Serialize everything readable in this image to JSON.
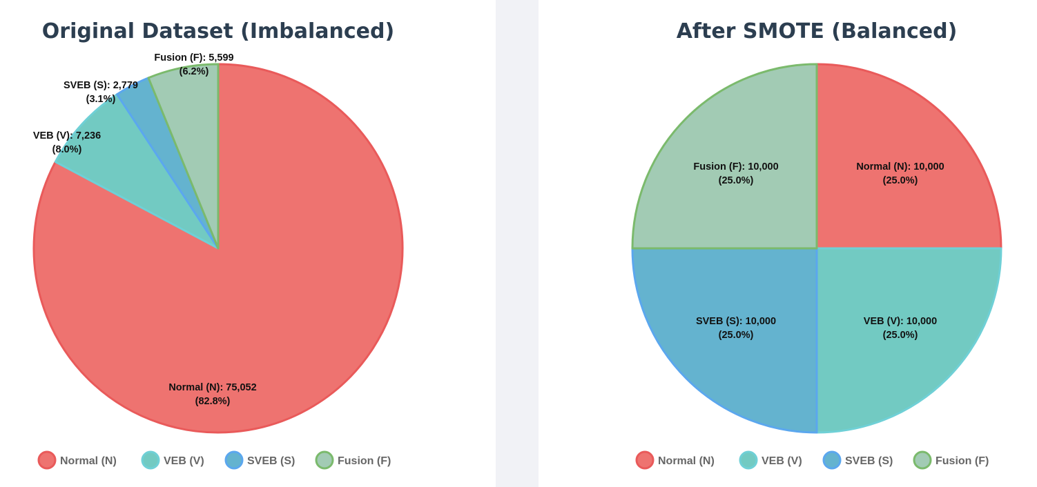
{
  "chart_data": [
    {
      "type": "pie",
      "title": "Original Dataset (Imbalanced)",
      "categories": [
        "Normal (N)",
        "VEB (V)",
        "SVEB (S)",
        "Fusion (F)"
      ],
      "values": [
        75052,
        7236,
        2779,
        5599
      ],
      "value_labels": [
        "Normal (N): 75,052",
        "VEB (V): 7,236",
        "SVEB (S): 2,779",
        "Fusion (F): 5,599"
      ],
      "percent_labels": [
        "(82.8%)",
        "(8.0%)",
        "(3.1%)",
        "(6.2%)"
      ],
      "colors": {
        "fill": [
          "#ee7370",
          "#72cac2",
          "#64b3cf",
          "#a2cbb4"
        ],
        "stroke": [
          "#e95a5a",
          "#6fd0d6",
          "#5ba7ee",
          "#7bba6c"
        ]
      },
      "legend_position": "bottom"
    },
    {
      "type": "pie",
      "title": "After SMOTE (Balanced)",
      "categories": [
        "Normal (N)",
        "VEB (V)",
        "SVEB (S)",
        "Fusion (F)"
      ],
      "values": [
        10000,
        10000,
        10000,
        10000
      ],
      "value_labels": [
        "Normal (N): 10,000",
        "VEB (V): 10,000",
        "SVEB (S): 10,000",
        "Fusion (F): 10,000"
      ],
      "percent_labels": [
        "(25.0%)",
        "(25.0%)",
        "(25.0%)",
        "(25.0%)"
      ],
      "colors": {
        "fill": [
          "#ee7370",
          "#72cac2",
          "#64b3cf",
          "#a2cbb4"
        ],
        "stroke": [
          "#e95a5a",
          "#6fd0d6",
          "#5ba7ee",
          "#7bba6c"
        ]
      },
      "legend_position": "bottom"
    }
  ]
}
